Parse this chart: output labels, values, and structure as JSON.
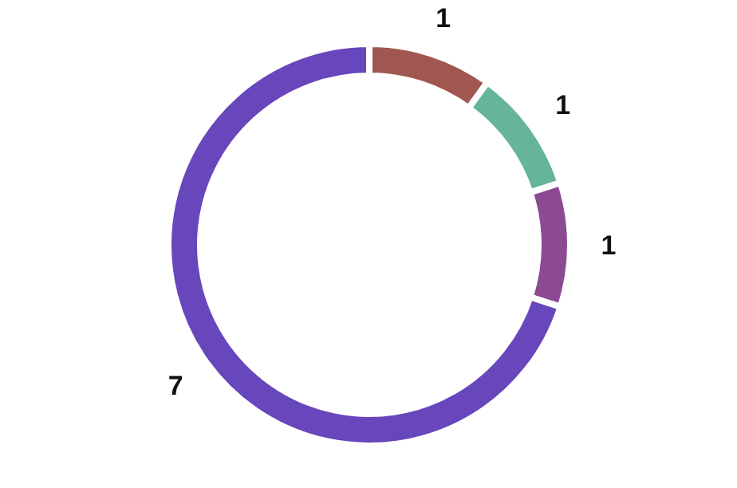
{
  "chart_data": {
    "type": "donut",
    "categories": [
      null,
      null,
      null,
      null
    ],
    "values": [
      1,
      1,
      1,
      7
    ],
    "colors": [
      "#a0574f",
      "#66b598",
      "#8b4a93",
      "#6846bb"
    ],
    "data_labels": true
  }
}
